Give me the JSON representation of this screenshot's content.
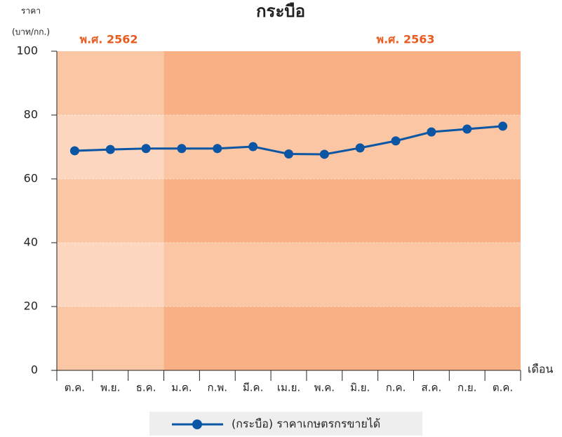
{
  "chart_data": {
    "type": "line",
    "title": "กระบือ",
    "ylabel": [
      "ราคา",
      "(บาท/กก.)"
    ],
    "xlabel": "เดือน",
    "annotations": [
      "พ.ศ. 2562",
      "พ.ศ. 2563"
    ],
    "categories": [
      "ต.ค.",
      "พ.ย.",
      "ธ.ค.",
      "ม.ค.",
      "ก.พ.",
      "มี.ค.",
      "เม.ย.",
      "พ.ค.",
      "มิ.ย.",
      "ก.ค.",
      "ส.ค.",
      "ก.ย.",
      "ต.ค."
    ],
    "series": [
      {
        "name": "(กระบือ) ราคาเกษตรกรขายได้",
        "color": "#0b56a4",
        "values": [
          68.8,
          69.2,
          69.5,
          69.5,
          69.5,
          70.1,
          67.8,
          67.7,
          69.7,
          71.9,
          74.7,
          75.6,
          76.5
        ]
      }
    ],
    "ylim": [
      0,
      100
    ],
    "yticks": [
      0,
      20,
      40,
      60,
      80,
      100
    ],
    "grid": true
  }
}
